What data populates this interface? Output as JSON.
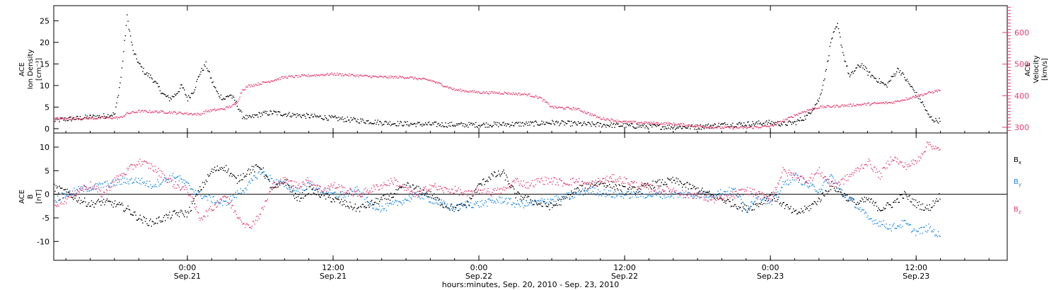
{
  "figure": {
    "x_axis_title": "hours:minutes, Sep. 20, 2010 - Sep. 23, 2010",
    "x_tick_labels": [
      {
        "hours": 24,
        "time": "0:00",
        "date": "Sep.21"
      },
      {
        "hours": 36,
        "time": "12:00",
        "date": "Sep.21"
      },
      {
        "hours": 48,
        "time": "0:00",
        "date": "Sep.22"
      },
      {
        "hours": 60,
        "time": "12:00",
        "date": "Sep.22"
      },
      {
        "hours": 72,
        "time": "0:00",
        "date": "Sep.23"
      },
      {
        "hours": 84,
        "time": "12:00",
        "date": "Sep.23"
      }
    ]
  },
  "chart_data": [
    {
      "type": "scatter",
      "panel": "top",
      "xlim": [
        13,
        91.5
      ],
      "left_axis": {
        "label_lines": [
          "ACE",
          "Ion Density",
          "[cm⁻³]"
        ],
        "ylim": [
          -1,
          28.5
        ],
        "ticks": [
          0,
          5,
          10,
          15,
          20,
          25
        ]
      },
      "right_axis": {
        "label_lines": [
          "ACE",
          "Velocity",
          "[km/s]"
        ],
        "ylim": [
          282,
          685
        ],
        "ticks": [
          300,
          400,
          500,
          600
        ],
        "color": "#e63c6e"
      },
      "series": [
        {
          "axis": "left",
          "color": "#000000",
          "x": [
            13,
            14,
            15,
            16,
            17,
            18,
            18.5,
            19,
            19.5,
            20,
            20.5,
            21,
            21.5,
            22,
            22.5,
            23,
            23.5,
            24,
            24.5,
            25,
            25.5,
            26,
            26.5,
            27,
            27.5,
            28,
            28.5,
            29,
            30,
            31,
            32,
            33,
            34,
            36,
            38,
            40,
            42,
            44,
            46,
            48,
            50,
            52,
            54,
            56,
            58,
            60,
            62,
            64,
            66,
            68,
            70,
            72,
            73,
            74,
            75,
            76,
            76.5,
            77,
            77.5,
            78,
            78.5,
            79,
            79.5,
            80,
            80.5,
            81,
            81.5,
            82,
            82.5,
            83,
            83.5,
            84,
            84.5,
            85,
            85.5,
            86
          ],
          "y": [
            2,
            2.3,
            2.5,
            2.8,
            3,
            3.5,
            12,
            26,
            18,
            15,
            13,
            12,
            10,
            8,
            7,
            8,
            10,
            7,
            9,
            13,
            15,
            11,
            8,
            7,
            8,
            6,
            3,
            2.5,
            3.5,
            3.8,
            3.5,
            3.2,
            3,
            2.5,
            2,
            1.5,
            1.2,
            1.1,
            1,
            1,
            1.1,
            1.2,
            1.5,
            1.2,
            1,
            0.8,
            0.6,
            0.5,
            0.5,
            1,
            1.2,
            1.5,
            1.2,
            1.5,
            3,
            7,
            13,
            21,
            24,
            17,
            12,
            14,
            15,
            13,
            12,
            11,
            10,
            12,
            14,
            12,
            10,
            8,
            6,
            3,
            2,
            2
          ]
        },
        {
          "axis": "right",
          "color": "#e63c6e",
          "x": [
            13,
            16,
            18.5,
            19,
            20,
            22,
            24,
            25,
            25.5,
            27,
            28,
            28.5,
            29,
            30,
            32,
            34,
            36,
            38,
            40,
            42,
            44,
            46,
            48,
            50,
            52,
            53,
            54,
            56,
            58,
            60,
            62,
            64,
            66,
            68,
            70,
            72,
            73.5,
            74,
            75,
            76,
            78,
            80,
            82,
            84,
            86
          ],
          "y": [
            328,
            330,
            332,
            345,
            352,
            350,
            345,
            342,
            352,
            360,
            375,
            420,
            432,
            440,
            460,
            465,
            470,
            465,
            460,
            460,
            450,
            420,
            412,
            410,
            405,
            395,
            365,
            360,
            330,
            318,
            315,
            312,
            305,
            300,
            300,
            305,
            330,
            340,
            355,
            365,
            370,
            375,
            380,
            400,
            420
          ]
        }
      ]
    },
    {
      "type": "scatter",
      "panel": "bottom",
      "xlim": [
        13,
        91.5
      ],
      "left_axis": {
        "label_lines": [
          "ACE",
          "B",
          "[nT]"
        ],
        "ylim": [
          -14,
          13
        ],
        "ticks": [
          -10,
          -5,
          0,
          5,
          10
        ]
      },
      "zero_line": 0,
      "series": [
        {
          "name": "B",
          "subscript": "x",
          "color": "#000000",
          "x": [
            13,
            14,
            15,
            16,
            17,
            18,
            19,
            20,
            21,
            22,
            23,
            24,
            25,
            26,
            27,
            28,
            29,
            30,
            31,
            32,
            33,
            34,
            35,
            36,
            37,
            38,
            39,
            40,
            41,
            42,
            43,
            44,
            45,
            46,
            47,
            48,
            49,
            50,
            51,
            52,
            53,
            54,
            55,
            56,
            57,
            58,
            59,
            60,
            61,
            62,
            63,
            64,
            65,
            66,
            67,
            68,
            69,
            70,
            71,
            72,
            73,
            74,
            75,
            76,
            77,
            78,
            79,
            80,
            81,
            82,
            83,
            84,
            85,
            86
          ],
          "y": [
            1.5,
            0.5,
            -1,
            -2,
            -1.5,
            -2,
            -3,
            -5,
            -6,
            -5,
            -4,
            -4,
            1,
            5,
            6,
            3,
            5,
            6,
            1,
            3,
            -1,
            1,
            0,
            -1,
            -2,
            -3,
            -2,
            -1,
            0,
            2,
            1,
            0,
            -2,
            -3,
            -2,
            2,
            4,
            4.5,
            0,
            -1,
            -2,
            -2.5,
            -1,
            1,
            2,
            2.5,
            2,
            1,
            1,
            2,
            2.5,
            3,
            2,
            1,
            0,
            -1,
            -2,
            -3,
            -2,
            0,
            -2,
            -4,
            -3,
            -1,
            2,
            0,
            -2,
            -1,
            -3,
            -2,
            0,
            -2,
            -3,
            0
          ]
        },
        {
          "name": "B",
          "subscript": "y",
          "color": "#1e88e5",
          "x": [
            13,
            14,
            15,
            16,
            17,
            18,
            19,
            20,
            21,
            22,
            23,
            24,
            25,
            26,
            27,
            28,
            29,
            30,
            31,
            32,
            33,
            34,
            35,
            36,
            37,
            38,
            39,
            40,
            41,
            42,
            43,
            44,
            45,
            46,
            47,
            48,
            49,
            50,
            51,
            52,
            53,
            54,
            55,
            56,
            57,
            58,
            59,
            60,
            61,
            62,
            63,
            64,
            65,
            66,
            67,
            68,
            69,
            70,
            71,
            72,
            73,
            74,
            75,
            76,
            77,
            78,
            79,
            80,
            81,
            82,
            83,
            84,
            85,
            86
          ],
          "y": [
            -1,
            0,
            1,
            1.5,
            2,
            2.5,
            3,
            3,
            2,
            3,
            4,
            2,
            0,
            -1,
            -2,
            0,
            2,
            5,
            3,
            2,
            1,
            2,
            1,
            0,
            0,
            1,
            -2,
            -3,
            -2,
            -1,
            0,
            -1,
            -2,
            -3,
            -2,
            -2,
            -1.5,
            -1,
            -2,
            -2,
            -1.5,
            -1,
            -0.5,
            0,
            1,
            0.5,
            0,
            0,
            0,
            0,
            0,
            0,
            0,
            0,
            0,
            0.5,
            1,
            -3,
            0,
            -2,
            2,
            4,
            2,
            1,
            4,
            0,
            -2,
            -5,
            -6,
            -7,
            -6,
            -8,
            -7,
            -9
          ]
        },
        {
          "name": "B",
          "subscript": "z",
          "color": "#e63c6e",
          "x": [
            13,
            14,
            15,
            16,
            17,
            18,
            19,
            20,
            21,
            22,
            23,
            24,
            25,
            26,
            27,
            28,
            29,
            30,
            31,
            32,
            33,
            34,
            35,
            36,
            37,
            38,
            39,
            40,
            41,
            42,
            43,
            44,
            45,
            46,
            47,
            48,
            49,
            50,
            51,
            52,
            53,
            54,
            55,
            56,
            57,
            58,
            59,
            60,
            61,
            62,
            63,
            64,
            65,
            66,
            67,
            68,
            69,
            70,
            71,
            72,
            73,
            74,
            75,
            76,
            77,
            78,
            79,
            80,
            81,
            82,
            83,
            84,
            85,
            86
          ],
          "y": [
            -2,
            -1,
            1,
            2,
            0,
            3,
            5,
            7,
            6,
            4,
            2,
            1,
            -5,
            -3,
            0,
            -4,
            -7,
            -4,
            2,
            3,
            2,
            3,
            1,
            2,
            1,
            0,
            1,
            2,
            3,
            1,
            0,
            2,
            1,
            1,
            0,
            1,
            0.5,
            1,
            3,
            2,
            3,
            3,
            2.5,
            3,
            2,
            3,
            3.5,
            3,
            2,
            1.5,
            1,
            1,
            0,
            0,
            -1,
            -1,
            0,
            1,
            0,
            -1,
            5,
            4,
            3,
            5,
            2,
            3,
            5,
            7,
            4,
            8,
            6,
            7,
            11,
            9
          ]
        }
      ]
    }
  ]
}
